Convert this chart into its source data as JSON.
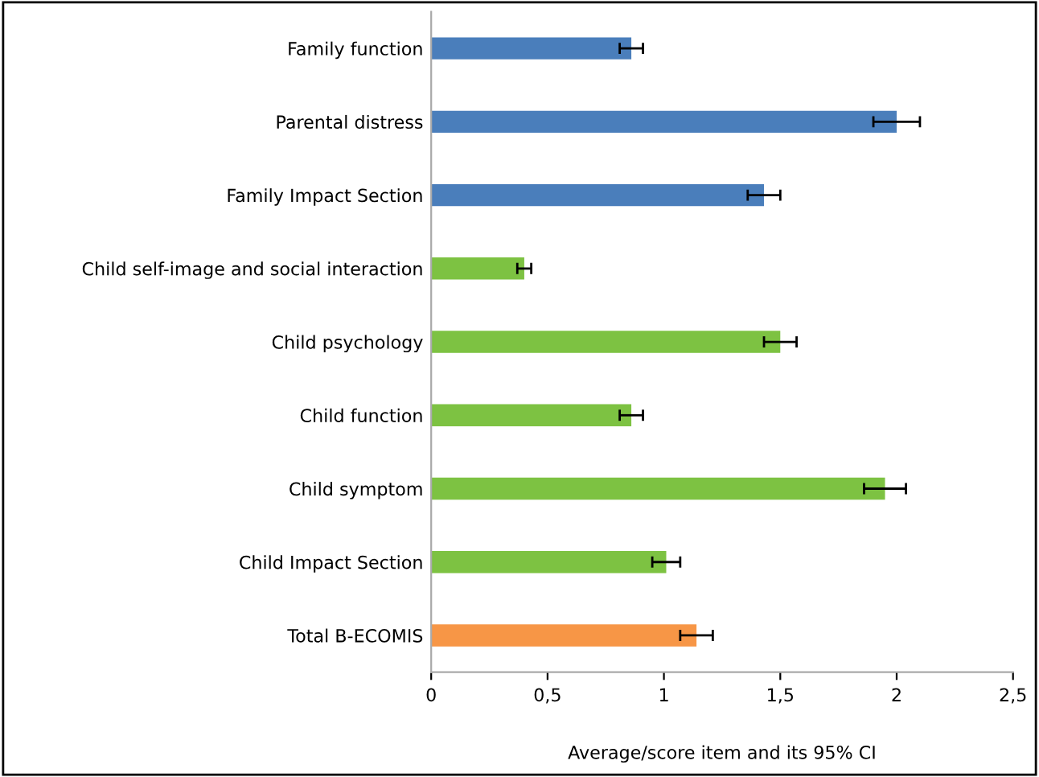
{
  "chart_data": {
    "type": "bar",
    "orientation": "horizontal",
    "xlabel": "Average/score item and its 95% CI",
    "categories": [
      "Family function",
      "Parental distress",
      "Family Impact Section",
      "Child self-image and social interaction",
      "Child psychology",
      "Child function",
      "Child symptom",
      "Child Impact Section",
      "Total B-ECOMIS"
    ],
    "values": [
      0.86,
      2.0,
      1.43,
      0.4,
      1.5,
      0.86,
      1.95,
      1.01,
      1.14
    ],
    "errors": [
      0.05,
      0.1,
      0.07,
      0.03,
      0.07,
      0.05,
      0.09,
      0.06,
      0.07
    ],
    "colors": [
      "#4a7ebb",
      "#4a7ebb",
      "#4a7ebb",
      "#7dc242",
      "#7dc242",
      "#7dc242",
      "#7dc242",
      "#7dc242",
      "#f79646"
    ],
    "xlim": [
      0,
      2.5
    ],
    "xticks": [
      0,
      {
        "value": 0.5,
        "label": "0,5"
      },
      1,
      {
        "value": 1.5,
        "label": "1,5"
      },
      2,
      {
        "value": 2.5,
        "label": "2,5"
      }
    ],
    "grid": false,
    "legend": false
  }
}
